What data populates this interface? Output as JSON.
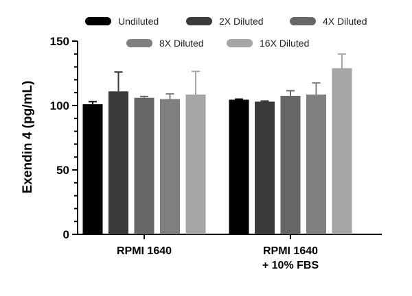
{
  "chart_data": {
    "type": "bar",
    "title": "",
    "xlabel": "",
    "ylabel": "Exendin 4 (pg/mL)",
    "ylim": [
      0,
      150
    ],
    "yticks": [
      "0",
      "50",
      "100",
      "150"
    ],
    "categories": [
      [
        "RPMI 1640"
      ],
      [
        "RPMI 1640",
        "+ 10% FBS"
      ]
    ],
    "series": [
      {
        "name": "Undiluted",
        "color": "#000000",
        "values": [
          101,
          104.5
        ],
        "errors": [
          2,
          0.5
        ]
      },
      {
        "name": "2X Diluted",
        "color": "#3a3a3a",
        "values": [
          111,
          103
        ],
        "errors": [
          15,
          0.5
        ]
      },
      {
        "name": "4X Diluted",
        "color": "#666666",
        "values": [
          106,
          107.5
        ],
        "errors": [
          1,
          4
        ]
      },
      {
        "name": "8X Diluted",
        "color": "#7f7f7f",
        "values": [
          105,
          108.5
        ],
        "errors": [
          4,
          9
        ]
      },
      {
        "name": "16X Diluted",
        "color": "#a6a6a6",
        "values": [
          108.5,
          129
        ],
        "errors": [
          18,
          11
        ]
      }
    ],
    "legend": "top"
  }
}
